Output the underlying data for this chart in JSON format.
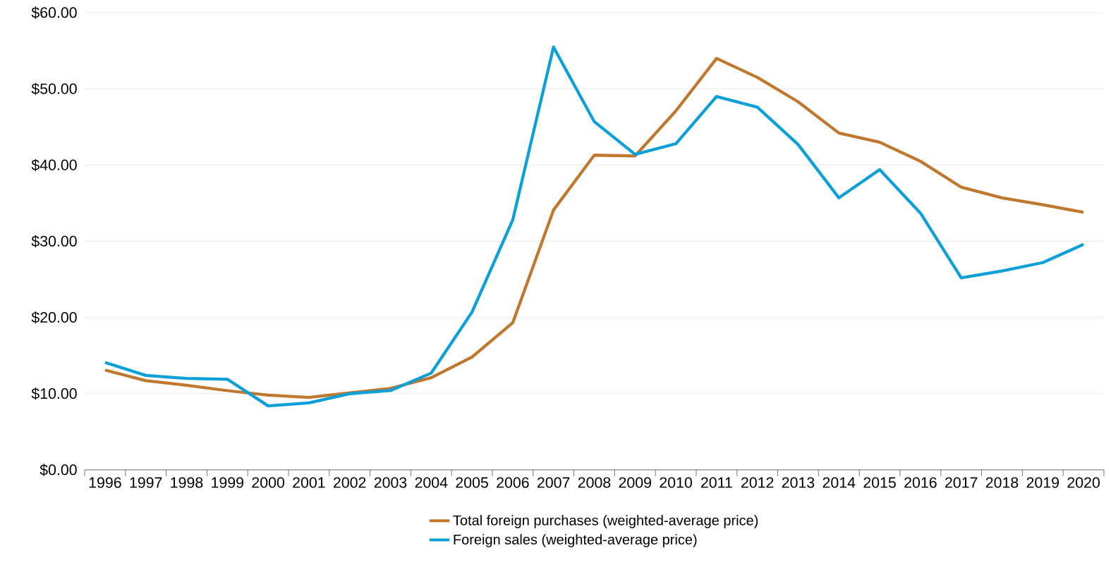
{
  "chart_data": {
    "type": "line",
    "categories": [
      "1996",
      "1997",
      "1998",
      "1999",
      "2000",
      "2001",
      "2002",
      "2003",
      "2004",
      "2005",
      "2006",
      "2007",
      "2008",
      "2009",
      "2010",
      "2011",
      "2012",
      "2013",
      "2014",
      "2015",
      "2016",
      "2017",
      "2018",
      "2019",
      "2020"
    ],
    "series": [
      {
        "name": "Total foreign purchases (weighted-average price)",
        "color": "#c0782f",
        "values": [
          13.1,
          11.7,
          11.1,
          10.4,
          9.8,
          9.5,
          10.1,
          10.7,
          12.1,
          14.8,
          19.3,
          34.1,
          41.3,
          41.2,
          47.1,
          54.0,
          51.5,
          48.3,
          44.2,
          43.0,
          40.5,
          37.1,
          35.7,
          34.8,
          33.8
        ]
      },
      {
        "name": "Foreign sales (weighted-average price)",
        "color": "#0c9fd8",
        "values": [
          14.1,
          12.4,
          12.0,
          11.9,
          8.4,
          8.8,
          10.0,
          10.4,
          12.7,
          20.7,
          32.8,
          55.5,
          45.7,
          41.4,
          42.8,
          49.0,
          47.6,
          42.7,
          35.7,
          39.4,
          33.7,
          25.2,
          26.1,
          27.2,
          29.6
        ]
      }
    ],
    "ylim": [
      0,
      60
    ],
    "yticks": [
      {
        "value": 0,
        "label": "$0.00"
      },
      {
        "value": 10,
        "label": "$10.00"
      },
      {
        "value": 20,
        "label": "$20.00"
      },
      {
        "value": 30,
        "label": "$30.00"
      },
      {
        "value": 40,
        "label": "$40.00"
      },
      {
        "value": 50,
        "label": "$50.00"
      },
      {
        "value": 60,
        "label": "$60.00"
      }
    ],
    "grid": "y",
    "legend": "bottom",
    "marker": "none",
    "line_style": "solid"
  }
}
